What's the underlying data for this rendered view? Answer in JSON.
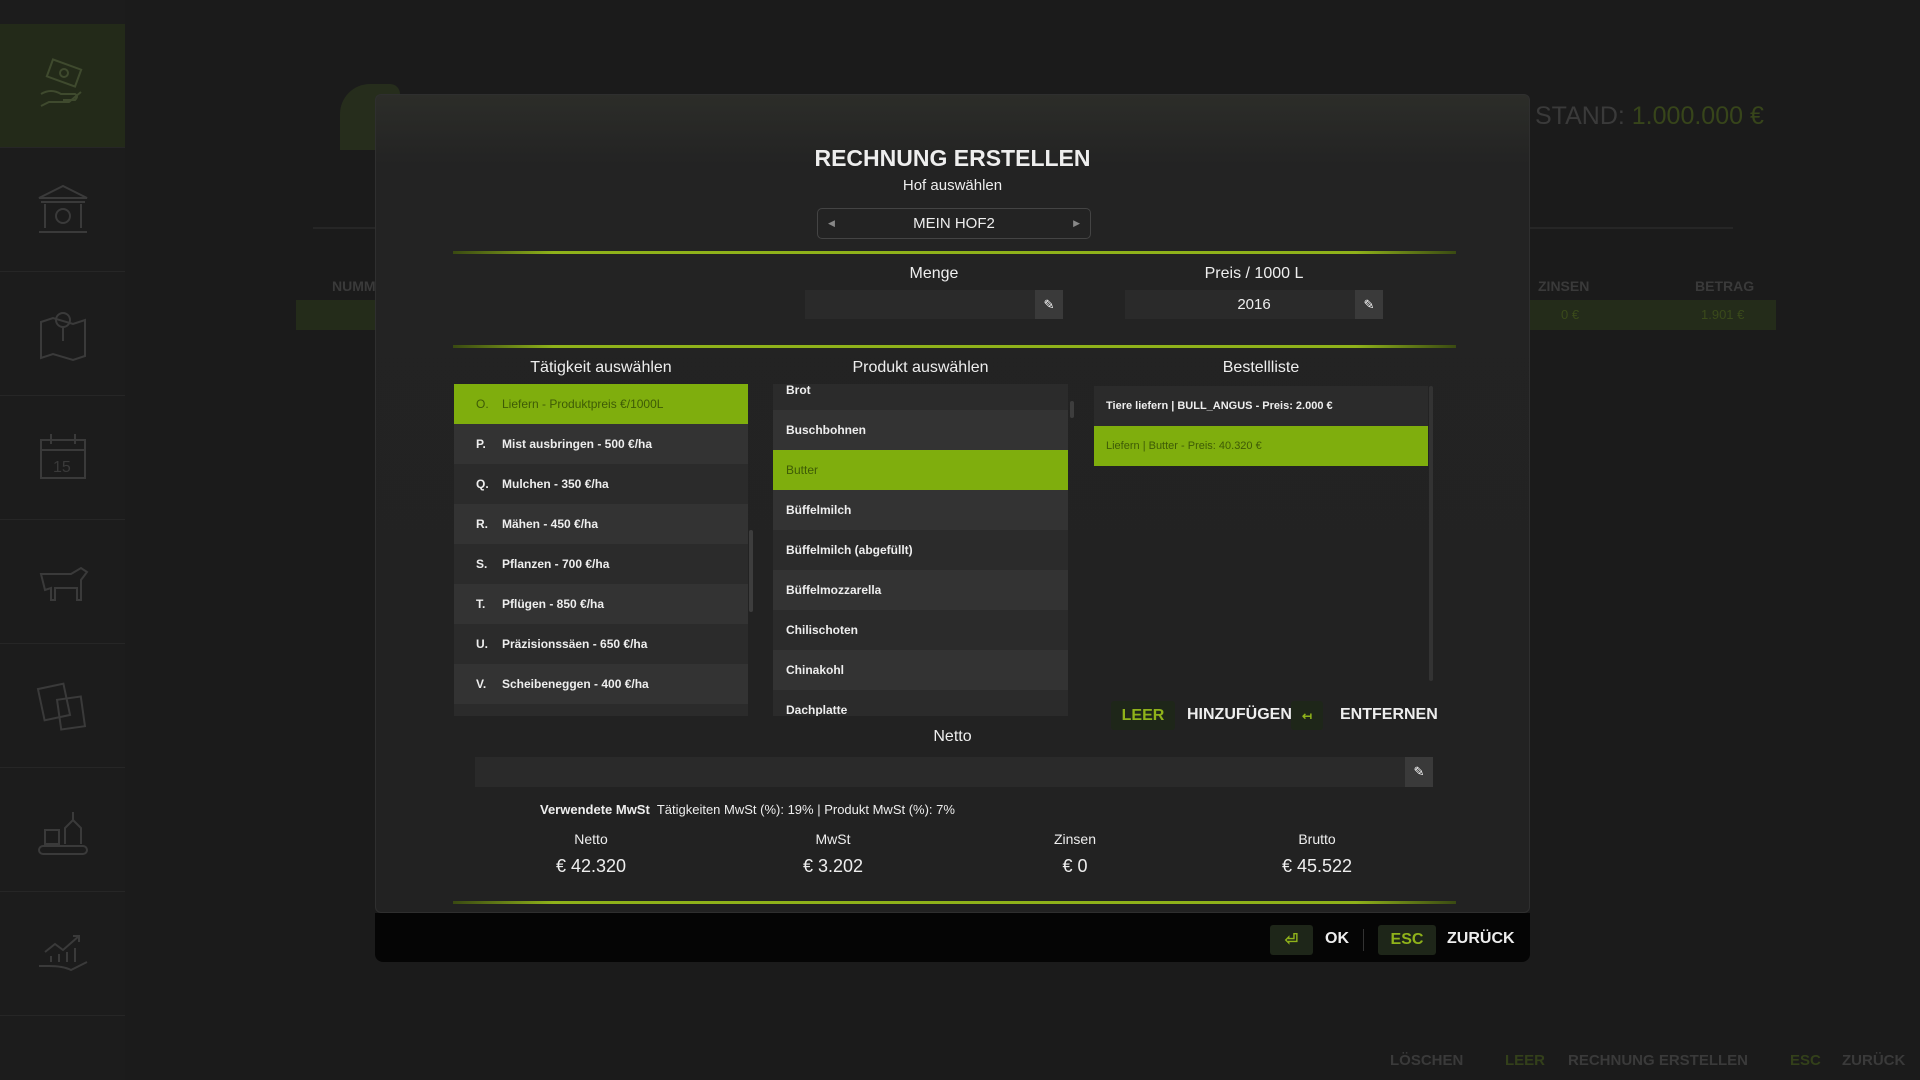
{
  "background": {
    "balance_label": "STAND:",
    "balance_value": "1.000.000 €",
    "columns": [
      "NUMM",
      "ZINSEN",
      "BETRAG"
    ],
    "row_values": [
      "0 €",
      "1.901 €"
    ],
    "hints": {
      "delete": "LÖSCHEN",
      "leer": "LEER",
      "create": "RECHNUNG ERSTELLEN",
      "esc": "ESC",
      "back": "ZURÜCK"
    }
  },
  "sidebar": {
    "items": [
      {
        "icon": "money-hand-icon",
        "active": true
      },
      {
        "icon": "bank-icon"
      },
      {
        "icon": "map-icon"
      },
      {
        "icon": "calendar-icon",
        "text": "15"
      },
      {
        "icon": "cow-icon"
      },
      {
        "icon": "documents-icon"
      },
      {
        "icon": "factory-icon"
      },
      {
        "icon": "growth-hand-icon"
      }
    ]
  },
  "modal": {
    "title": "RECHNUNG ERSTELLEN",
    "farm_label": "Hof auswählen",
    "farm_value": "MEIN HOF2",
    "quantity_label": "Menge",
    "quantity_value": "",
    "price_label": "Preis / 1000 L",
    "price_value": "2016",
    "activity_header": "Tätigkeit auswählen",
    "product_header": "Produkt auswählen",
    "order_header": "Bestellliste",
    "activities": [
      {
        "letter": "O.",
        "label": "Liefern - Produktpreis €/1000L",
        "selected": true
      },
      {
        "letter": "P.",
        "label": "Mist ausbringen - 500 €/ha"
      },
      {
        "letter": "Q.",
        "label": "Mulchen - 350 €/ha"
      },
      {
        "letter": "R.",
        "label": "Mähen - 450 €/ha"
      },
      {
        "letter": "S.",
        "label": "Pflanzen - 700 €/ha"
      },
      {
        "letter": "T.",
        "label": "Pflügen - 850 €/ha"
      },
      {
        "letter": "U.",
        "label": "Präzisionssäen - 650 €/ha"
      },
      {
        "letter": "V.",
        "label": "Scheibeneggen - 400 €/ha"
      },
      {
        "letter": "",
        "label": ""
      }
    ],
    "products": [
      {
        "label": "Brot"
      },
      {
        "label": "Buschbohnen"
      },
      {
        "label": "Butter",
        "selected": true
      },
      {
        "label": "Büffelmilch"
      },
      {
        "label": "Büffelmilch (abgefüllt)"
      },
      {
        "label": "Büffelmozzarella"
      },
      {
        "label": "Chilischoten"
      },
      {
        "label": "Chinakohl"
      },
      {
        "label": "Dachplatte"
      }
    ],
    "orders": [
      {
        "label": "Tiere liefern | BULL_ANGUS - Preis: 2.000 €"
      },
      {
        "label": "Liefern | Butter - Preis: 40.320 €",
        "selected": true
      }
    ],
    "actions": {
      "leer_key": "LEER",
      "add": "HINZUFÜGEN",
      "remove_key_icon": "arrow-left-bar-icon",
      "remove": "ENTFERNEN"
    },
    "netto_label": "Netto",
    "netto_value": "",
    "vat_label": "Verwendete MwSt",
    "vat_text": "Tätigkeiten MwSt (%): 19% | Produkt MwSt (%): 7%",
    "summary": [
      {
        "label": "Netto",
        "value": "€ 42.320"
      },
      {
        "label": "MwSt",
        "value": "€ 3.202"
      },
      {
        "label": "Zinsen",
        "value": "€ 0"
      },
      {
        "label": "Brutto",
        "value": "€ 45.522"
      }
    ],
    "footer": {
      "ok_icon": "enter-icon",
      "ok": "OK",
      "esc": "ESC",
      "back": "ZURÜCK"
    }
  },
  "colors": {
    "accent": "#7fae0d",
    "background": "#1b1b1b",
    "panel": "#222222"
  }
}
